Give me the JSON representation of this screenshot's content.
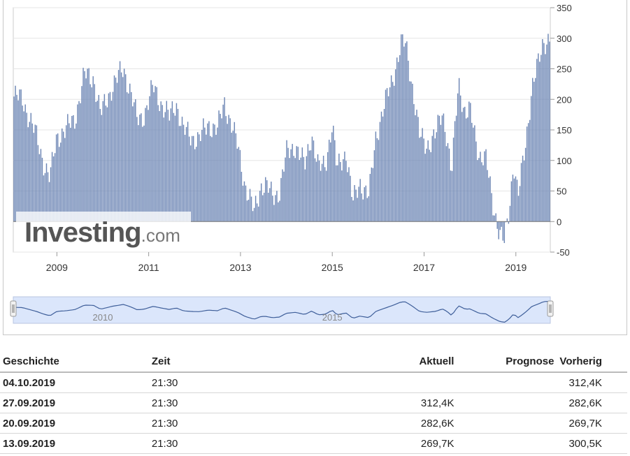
{
  "chart_data": {
    "type": "bar",
    "title": "",
    "xlabel": "",
    "ylabel": "",
    "ylim": [
      -50,
      350
    ],
    "yticks": [
      -50,
      0,
      50,
      100,
      150,
      200,
      250,
      300,
      350
    ],
    "xtick_labels": [
      "2009",
      "2011",
      "2013",
      "2015",
      "2017",
      "2019"
    ],
    "xtick_years": [
      2009,
      2011,
      2013,
      2015,
      2017,
      2019
    ],
    "x_range": [
      2008.05,
      2019.75
    ],
    "grid": true,
    "bar_color": "#6e87b5",
    "series": [
      {
        "x": [
          2008.05,
          2008.25,
          2008.4,
          2008.55,
          2008.72,
          2008.85,
          2009.0,
          2009.2,
          2009.4,
          2009.6,
          2009.8,
          2009.95,
          2010.2,
          2010.45,
          2010.6,
          2010.75,
          2010.9,
          2011.1,
          2011.3,
          2011.45,
          2011.6,
          2011.75,
          2011.9,
          2012.1,
          2012.3,
          2012.5,
          2012.65,
          2012.8,
          2012.95,
          2013.1,
          2013.3,
          2013.45,
          2013.55,
          2013.7,
          2013.85,
          2014.0,
          2014.2,
          2014.4,
          2014.55,
          2014.7,
          2014.85,
          2015.0,
          2015.1,
          2015.3,
          2015.45,
          2015.6,
          2015.8,
          2015.95,
          2016.1,
          2016.3,
          2016.5,
          2016.6,
          2016.75,
          2016.9,
          2017.05,
          2017.25,
          2017.4,
          2017.5,
          2017.6,
          2017.75,
          2017.9,
          2018.0,
          2018.2,
          2018.35,
          2018.5,
          2018.65,
          2018.75,
          2018.85,
          2018.95,
          2019.05,
          2019.2,
          2019.35,
          2019.5,
          2019.6,
          2019.72
        ],
        "values": [
          205,
          200,
          170,
          140,
          95,
          70,
          140,
          150,
          170,
          240,
          235,
          175,
          220,
          250,
          215,
          165,
          175,
          220,
          190,
          170,
          195,
          150,
          140,
          135,
          160,
          150,
          195,
          160,
          120,
          60,
          15,
          60,
          60,
          40,
          50,
          110,
          125,
          90,
          145,
          85,
          95,
          160,
          85,
          115,
          30,
          65,
          40,
          140,
          180,
          230,
          290,
          290,
          220,
          140,
          125,
          140,
          180,
          140,
          75,
          230,
          175,
          180,
          110,
          100,
          30,
          -20,
          -35,
          15,
          100,
          40,
          120,
          220,
          260,
          295,
          300
        ]
      }
    ]
  },
  "navigator": {
    "year_labels": [
      "2010",
      "2015"
    ],
    "year_positions": [
      2010,
      2015
    ]
  },
  "watermark": {
    "brand": "Investing",
    "suffix": ".com"
  },
  "table": {
    "headers": {
      "history": "Geschichte",
      "time": "Zeit",
      "actual": "Aktuell",
      "forecast": "Prognose",
      "previous": "Vorherig"
    },
    "rows": [
      {
        "date": "04.10.2019",
        "time": "21:30",
        "actual": "",
        "forecast": "",
        "previous": "312,4K"
      },
      {
        "date": "27.09.2019",
        "time": "21:30",
        "actual": "312,4K",
        "forecast": "",
        "previous": "282,6K"
      },
      {
        "date": "20.09.2019",
        "time": "21:30",
        "actual": "282,6K",
        "forecast": "",
        "previous": "269,7K"
      },
      {
        "date": "13.09.2019",
        "time": "21:30",
        "actual": "269,7K",
        "forecast": "",
        "previous": "300,5K"
      }
    ]
  }
}
